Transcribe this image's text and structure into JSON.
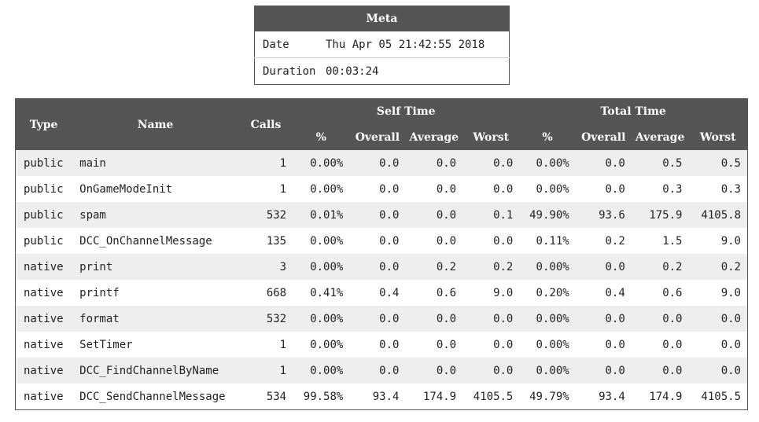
{
  "meta": {
    "title": "Meta",
    "rows": [
      {
        "key": "Date",
        "value": "Thu Apr 05 21:42:55 2018"
      },
      {
        "key": "Duration",
        "value": "00:03:24"
      }
    ]
  },
  "profile": {
    "headers": {
      "type": "Type",
      "name": "Name",
      "calls": "Calls",
      "self_time": "Self Time",
      "total_time": "Total Time",
      "percent": "%",
      "overall": "Overall",
      "average": "Average",
      "worst": "Worst"
    },
    "rows": [
      {
        "type": "public",
        "name": "main",
        "calls": "1",
        "self_pct": "0.00%",
        "self_overall": "0.0",
        "self_avg": "0.0",
        "self_worst": "0.0",
        "total_pct": "0.00%",
        "total_overall": "0.0",
        "total_avg": "0.5",
        "total_worst": "0.5"
      },
      {
        "type": "public",
        "name": "OnGameModeInit",
        "calls": "1",
        "self_pct": "0.00%",
        "self_overall": "0.0",
        "self_avg": "0.0",
        "self_worst": "0.0",
        "total_pct": "0.00%",
        "total_overall": "0.0",
        "total_avg": "0.3",
        "total_worst": "0.3"
      },
      {
        "type": "public",
        "name": "spam",
        "calls": "532",
        "self_pct": "0.01%",
        "self_overall": "0.0",
        "self_avg": "0.0",
        "self_worst": "0.1",
        "total_pct": "49.90%",
        "total_overall": "93.6",
        "total_avg": "175.9",
        "total_worst": "4105.8"
      },
      {
        "type": "public",
        "name": "DCC_OnChannelMessage",
        "calls": "135",
        "self_pct": "0.00%",
        "self_overall": "0.0",
        "self_avg": "0.0",
        "self_worst": "0.0",
        "total_pct": "0.11%",
        "total_overall": "0.2",
        "total_avg": "1.5",
        "total_worst": "9.0"
      },
      {
        "type": "native",
        "name": "print",
        "calls": "3",
        "self_pct": "0.00%",
        "self_overall": "0.0",
        "self_avg": "0.2",
        "self_worst": "0.2",
        "total_pct": "0.00%",
        "total_overall": "0.0",
        "total_avg": "0.2",
        "total_worst": "0.2"
      },
      {
        "type": "native",
        "name": "printf",
        "calls": "668",
        "self_pct": "0.41%",
        "self_overall": "0.4",
        "self_avg": "0.6",
        "self_worst": "9.0",
        "total_pct": "0.20%",
        "total_overall": "0.4",
        "total_avg": "0.6",
        "total_worst": "9.0"
      },
      {
        "type": "native",
        "name": "format",
        "calls": "532",
        "self_pct": "0.00%",
        "self_overall": "0.0",
        "self_avg": "0.0",
        "self_worst": "0.0",
        "total_pct": "0.00%",
        "total_overall": "0.0",
        "total_avg": "0.0",
        "total_worst": "0.0"
      },
      {
        "type": "native",
        "name": "SetTimer",
        "calls": "1",
        "self_pct": "0.00%",
        "self_overall": "0.0",
        "self_avg": "0.0",
        "self_worst": "0.0",
        "total_pct": "0.00%",
        "total_overall": "0.0",
        "total_avg": "0.0",
        "total_worst": "0.0"
      },
      {
        "type": "native",
        "name": "DCC_FindChannelByName",
        "calls": "1",
        "self_pct": "0.00%",
        "self_overall": "0.0",
        "self_avg": "0.0",
        "self_worst": "0.0",
        "total_pct": "0.00%",
        "total_overall": "0.0",
        "total_avg": "0.0",
        "total_worst": "0.0"
      },
      {
        "type": "native",
        "name": "DCC_SendChannelMessage",
        "calls": "534",
        "self_pct": "99.58%",
        "self_overall": "93.4",
        "self_avg": "174.9",
        "self_worst": "4105.5",
        "total_pct": "49.79%",
        "total_overall": "93.4",
        "total_avg": "174.9",
        "total_worst": "4105.5"
      }
    ]
  }
}
